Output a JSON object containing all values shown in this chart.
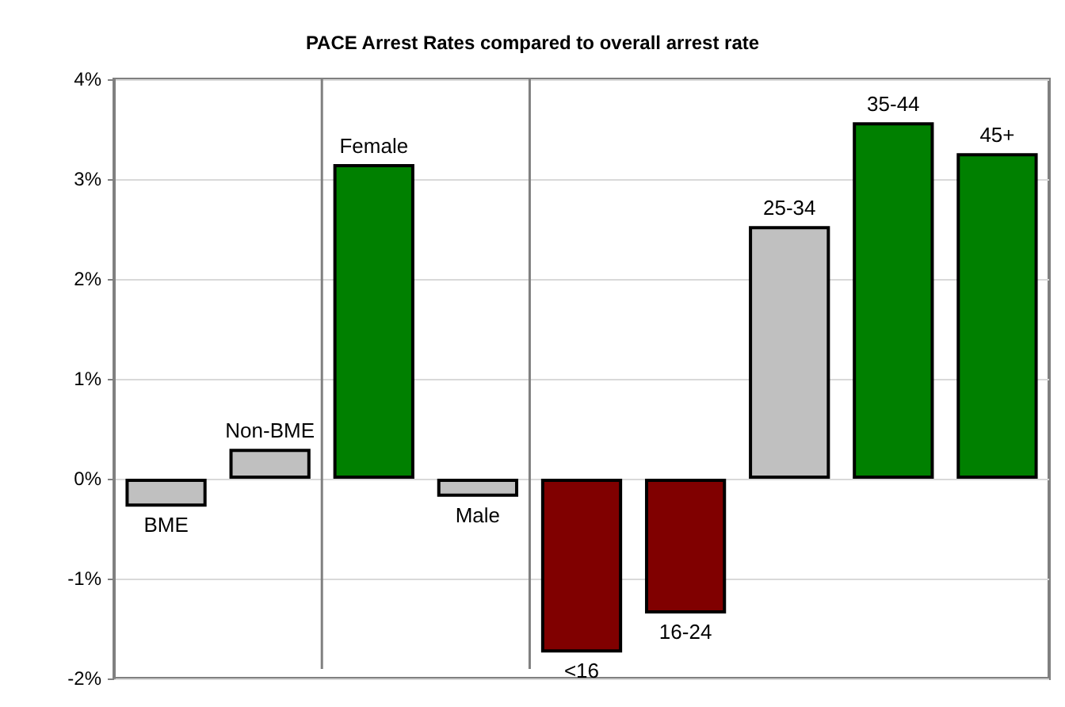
{
  "chart_data": {
    "type": "bar",
    "title": "PACE Arrest Rates compared to overall arrest rate",
    "categories": [
      "BME",
      "Non-BME",
      "Female",
      "Male",
      "<16",
      "16-24",
      "25-34",
      "35-44",
      "45+"
    ],
    "values": [
      -0.28,
      0.3,
      3.15,
      -0.18,
      -1.74,
      -1.35,
      2.53,
      3.57,
      3.26
    ],
    "colors": [
      "#c0c0c0",
      "#c0c0c0",
      "#008000",
      "#c0c0c0",
      "#800000",
      "#800000",
      "#c0c0c0",
      "#008000",
      "#008000"
    ],
    "ylim": [
      -2,
      4
    ],
    "yticks": [
      {
        "value": -2,
        "label": "-2%"
      },
      {
        "value": -1,
        "label": "-1%"
      },
      {
        "value": 0,
        "label": "0%"
      },
      {
        "value": 1,
        "label": "1%"
      },
      {
        "value": 2,
        "label": "2%"
      },
      {
        "value": 3,
        "label": "3%"
      },
      {
        "value": 4,
        "label": "4%"
      }
    ],
    "grid": "y",
    "tick_labels": "y"
  }
}
